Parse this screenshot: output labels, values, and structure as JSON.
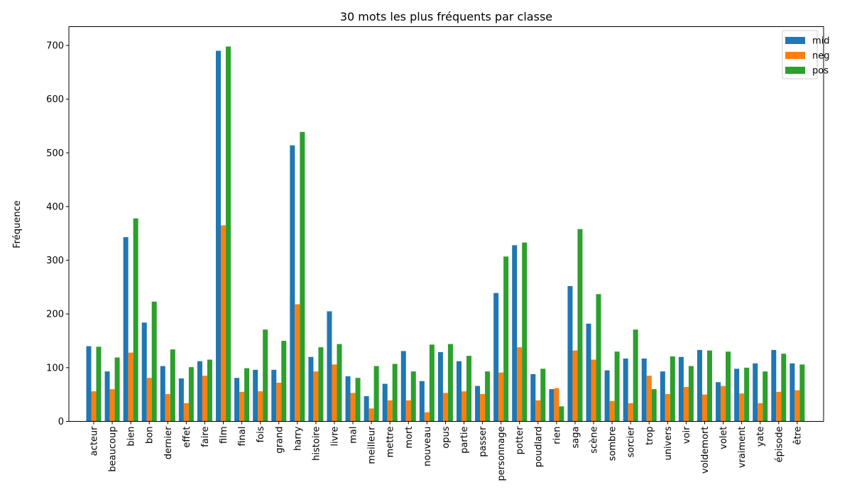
{
  "chart_data": {
    "type": "bar",
    "title": "30 mots les plus fréquents par classe",
    "xlabel": "",
    "ylabel": "Fréquence",
    "ylim": [
      0,
      735
    ],
    "yticks": [
      0,
      100,
      200,
      300,
      400,
      500,
      600,
      700
    ],
    "grid": false,
    "legend_position": "top-right",
    "categories": [
      "acteur",
      "beaucoup",
      "bien",
      "bon",
      "dernier",
      "effet",
      "faire",
      "film",
      "final",
      "fois",
      "grand",
      "harry",
      "histoire",
      "livre",
      "mal",
      "meilleur",
      "mettre",
      "mort",
      "nouveau",
      "opus",
      "partie",
      "passer",
      "personnage",
      "potter",
      "poudlard",
      "rien",
      "saga",
      "scène",
      "sombre",
      "sorcier",
      "trop",
      "univers",
      "voir",
      "voldemort",
      "volet",
      "vraiment",
      "yate",
      "épisode",
      "être"
    ],
    "series": [
      {
        "name": "mid",
        "color": "#1f77b4",
        "values": [
          140,
          93,
          343,
          184,
          103,
          80,
          112,
          690,
          81,
          96,
          96,
          514,
          120,
          205,
          84,
          47,
          70,
          131,
          75,
          129,
          112,
          66,
          239,
          328,
          88,
          60,
          252,
          182,
          95,
          117,
          117,
          93,
          120,
          133,
          73,
          98,
          108,
          133,
          108
        ]
      },
      {
        "name": "neg",
        "color": "#ff7f0e",
        "values": [
          56,
          60,
          128,
          81,
          51,
          34,
          85,
          365,
          55,
          56,
          72,
          218,
          93,
          106,
          53,
          24,
          39,
          39,
          17,
          53,
          56,
          51,
          91,
          138,
          39,
          62,
          132,
          115,
          38,
          34,
          85,
          51,
          64,
          50,
          66,
          52,
          34,
          55,
          58
        ]
      },
      {
        "name": "pos",
        "color": "#2ca02c",
        "values": [
          139,
          119,
          378,
          223,
          134,
          101,
          115,
          698,
          99,
          171,
          150,
          539,
          138,
          144,
          81,
          103,
          107,
          93,
          143,
          144,
          122,
          93,
          307,
          333,
          98,
          28,
          358,
          237,
          130,
          171,
          60,
          121,
          103,
          132,
          130,
          100,
          93,
          126,
          106
        ]
      }
    ]
  }
}
